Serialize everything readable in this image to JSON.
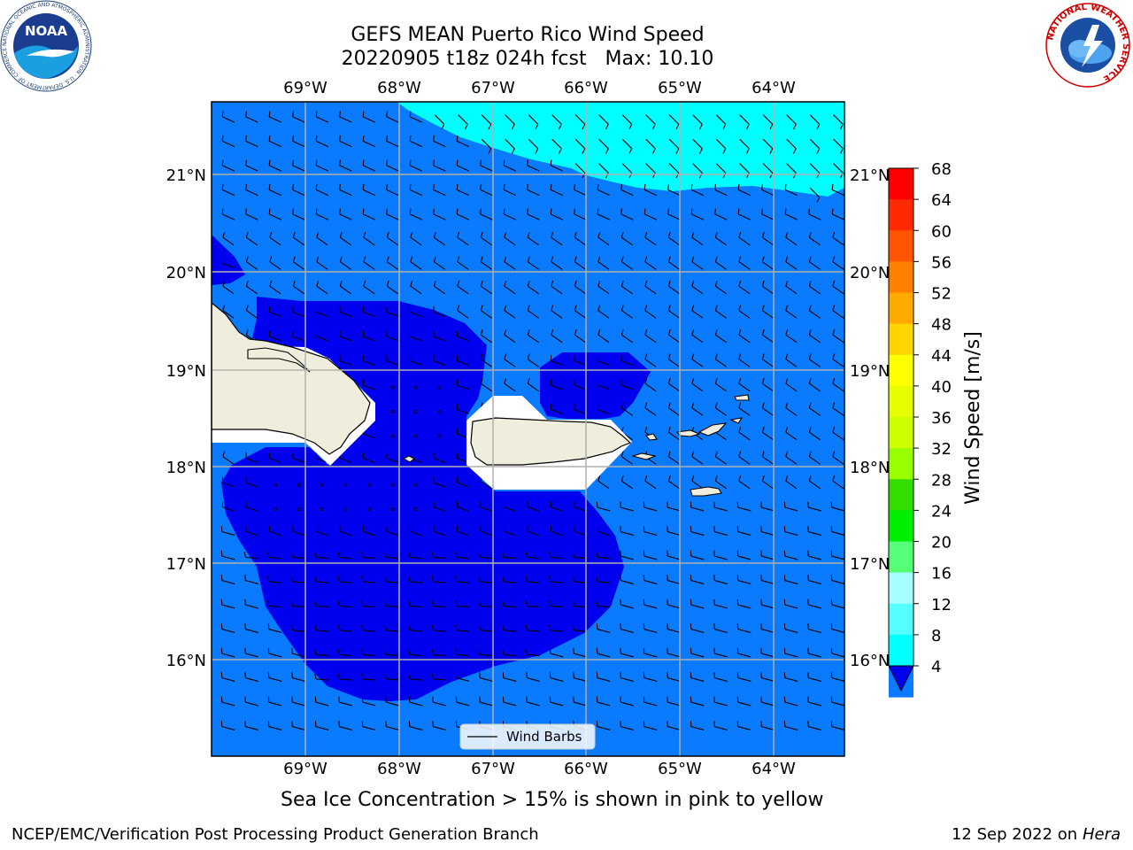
{
  "title": {
    "line1": "GEFS MEAN Puerto Rico Wind Speed",
    "line2": "20220905 t18z 024h fcst   Max: 10.10"
  },
  "map": {
    "lon_labels": [
      "69°W",
      "68°W",
      "67°W",
      "66°W",
      "65°W",
      "64°W"
    ],
    "lat_labels": [
      "21°N",
      "20°N",
      "19°N",
      "18°N",
      "17°N",
      "16°N"
    ],
    "legend_label": "Wind Barbs",
    "colors": {
      "band_4_8": "#0a7bff",
      "band_lt4": "#0000ee",
      "band_8_12": "#00ffff",
      "land": "#efeedd",
      "gridline": "#b0b0b0"
    }
  },
  "colorbar": {
    "label": "Wind Speed [m/s]",
    "ticks": [
      "68",
      "64",
      "60",
      "56",
      "52",
      "48",
      "44",
      "40",
      "36",
      "32",
      "28",
      "24",
      "20",
      "16",
      "12",
      "8",
      "4"
    ],
    "colors": [
      "#ff0000",
      "#ff2a00",
      "#ff5500",
      "#ff8000",
      "#ffaa00",
      "#ffd400",
      "#ffff00",
      "#e6ff00",
      "#ccff00",
      "#99ff00",
      "#33dd00",
      "#00ee00",
      "#55ff77",
      "#a6ffff",
      "#55ffff",
      "#00ffff",
      "#0a7bff"
    ],
    "extend_color": "#0000ee"
  },
  "caption": "Sea Ice Concentration > 15% is shown in pink to yellow",
  "footer": {
    "left": "NCEP/EMC/Verification Post Processing Product Generation Branch",
    "right_date": "12 Sep 2022 on",
    "right_machine": "Hera"
  },
  "logos": {
    "noaa_text": "NOAA",
    "noaa_ring": "NATIONAL OCEANIC AND ATMOSPHERIC ADMINISTRATION · U.S. DEPARTMENT OF COMMERCE",
    "nws_ring": "NATIONAL WEATHER SERVICE"
  }
}
